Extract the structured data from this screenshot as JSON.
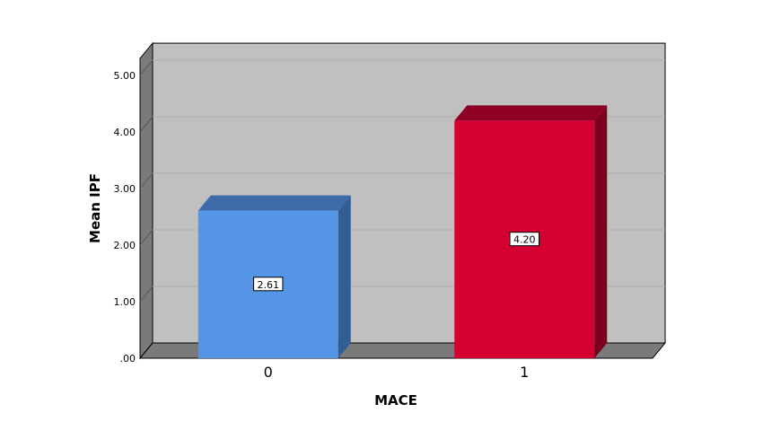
{
  "chart_data": {
    "type": "bar",
    "categories": [
      "0",
      "1"
    ],
    "values": [
      2.61,
      4.2
    ],
    "data_labels": [
      "2.61",
      "4.20"
    ],
    "xlabel": "MACE",
    "ylabel": "Mean IPF",
    "ylim": [
      0,
      5.3
    ],
    "yticks": [
      ".00",
      "1.00",
      "2.00",
      "3.00",
      "4.00",
      "5.00"
    ],
    "grid": true,
    "style": "3d",
    "colors": {
      "bar_fronts": [
        "#5595e6",
        "#d50032"
      ],
      "bar_sides": [
        "#335e94",
        "#7a001e"
      ],
      "bar_tops": [
        "#3d6aa8",
        "#8f0025"
      ],
      "wall": "#c0c0c0",
      "floor": "#7a7a7a",
      "side_wall": "#7a7a7a",
      "grid": "#aeaeae"
    }
  }
}
